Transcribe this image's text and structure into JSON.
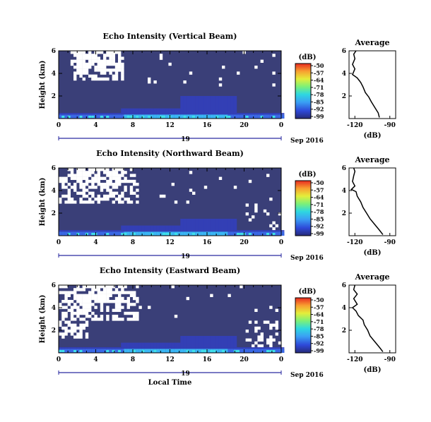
{
  "chart_data": [
    {
      "type": "heatmap",
      "title": "Echo Intensity (Vertical Beam)",
      "ylabel": "Height (km)",
      "xticks": [
        "0",
        "4",
        "8",
        "12",
        "16",
        "20",
        "0"
      ],
      "yticks": [
        "2",
        "4",
        "6"
      ],
      "ylim": [
        0,
        6
      ],
      "xlim": [
        0,
        24
      ],
      "date_day": "19",
      "date_label": "Sep 2016",
      "colorbar": {
        "title": "(dB)",
        "ticks": [
          "-50",
          "-57",
          "-64",
          "-71",
          "-78",
          "-85",
          "-92",
          "-99"
        ]
      },
      "profile": {
        "title": "Average",
        "xlabel": "(dB)",
        "xticks": [
          "-120",
          "-90"
        ],
        "yticks": [
          "2",
          "4",
          "6"
        ],
        "xlim": [
          -125,
          -85
        ],
        "points": [
          [
            -99,
            0.1
          ],
          [
            -100,
            0.5
          ],
          [
            -103,
            1.0
          ],
          [
            -106,
            1.5
          ],
          [
            -108,
            1.9
          ],
          [
            -111,
            2.3
          ],
          [
            -113,
            2.8
          ],
          [
            -115,
            3.2
          ],
          [
            -118,
            3.6
          ],
          [
            -122,
            3.9
          ],
          [
            -120,
            4.4
          ],
          [
            -122,
            4.8
          ],
          [
            -120,
            5.3
          ],
          [
            -121,
            5.7
          ],
          [
            -119,
            6.0
          ]
        ]
      }
    },
    {
      "type": "heatmap",
      "title": "Echo Intensity (Northward Beam)",
      "ylabel": "Height (km)",
      "xticks": [
        "0",
        "4",
        "8",
        "12",
        "16",
        "20",
        "0"
      ],
      "yticks": [
        "2",
        "4",
        "6"
      ],
      "ylim": [
        0,
        6
      ],
      "xlim": [
        0,
        24
      ],
      "date_day": "19",
      "date_label": "Sep 2016",
      "colorbar": {
        "title": "(dB)",
        "ticks": [
          "-50",
          "-57",
          "-64",
          "-71",
          "-78",
          "-85",
          "-92",
          "-99"
        ]
      },
      "profile": {
        "title": "Average",
        "xlabel": "(dB)",
        "xticks": [
          "-120",
          "-90"
        ],
        "yticks": [
          "2",
          "4",
          "6"
        ],
        "xlim": [
          -125,
          -85
        ],
        "points": [
          [
            -96,
            0.1
          ],
          [
            -99,
            0.5
          ],
          [
            -103,
            1.0
          ],
          [
            -107,
            1.5
          ],
          [
            -110,
            2.0
          ],
          [
            -113,
            2.5
          ],
          [
            -115,
            3.0
          ],
          [
            -118,
            3.5
          ],
          [
            -119,
            3.9
          ],
          [
            -123,
            4.1
          ],
          [
            -120,
            4.4
          ],
          [
            -122,
            4.8
          ],
          [
            -121,
            5.3
          ],
          [
            -120,
            5.7
          ],
          [
            -121,
            6.0
          ]
        ]
      }
    },
    {
      "type": "heatmap",
      "title": "Echo Intensity (Eastward Beam)",
      "ylabel": "Height (km)",
      "xlabel": "Local Time",
      "xticks": [
        "0",
        "4",
        "8",
        "12",
        "16",
        "20",
        "0"
      ],
      "yticks": [
        "2",
        "4",
        "6"
      ],
      "ylim": [
        0,
        6
      ],
      "xlim": [
        0,
        24
      ],
      "date_day": "19",
      "date_label": "Sep 2016",
      "colorbar": {
        "title": "(dB)",
        "ticks": [
          "-50",
          "-57",
          "-64",
          "-71",
          "-78",
          "-85",
          "-92",
          "-99"
        ]
      },
      "profile": {
        "title": "Average",
        "xlabel": "(dB)",
        "xticks": [
          "-120",
          "-90"
        ],
        "yticks": [
          "2",
          "4",
          "6"
        ],
        "xlim": [
          -125,
          -85
        ],
        "points": [
          [
            -96,
            0.1
          ],
          [
            -99,
            0.5
          ],
          [
            -103,
            1.0
          ],
          [
            -107,
            1.5
          ],
          [
            -109,
            2.0
          ],
          [
            -112,
            2.5
          ],
          [
            -113,
            2.9
          ],
          [
            -117,
            3.3
          ],
          [
            -119,
            3.7
          ],
          [
            -122,
            4.0
          ],
          [
            -118,
            4.3
          ],
          [
            -121,
            4.8
          ],
          [
            -118,
            5.2
          ],
          [
            -121,
            5.6
          ],
          [
            -120,
            6.0
          ]
        ]
      }
    }
  ],
  "colors": {
    "background_echo": "#3a3f78",
    "colormap": [
      "#1c1c8c",
      "#3a5fe8",
      "#34a6f0",
      "#30d8d8",
      "#74f07c",
      "#d8f03c",
      "#f8a838",
      "#e83828"
    ]
  }
}
